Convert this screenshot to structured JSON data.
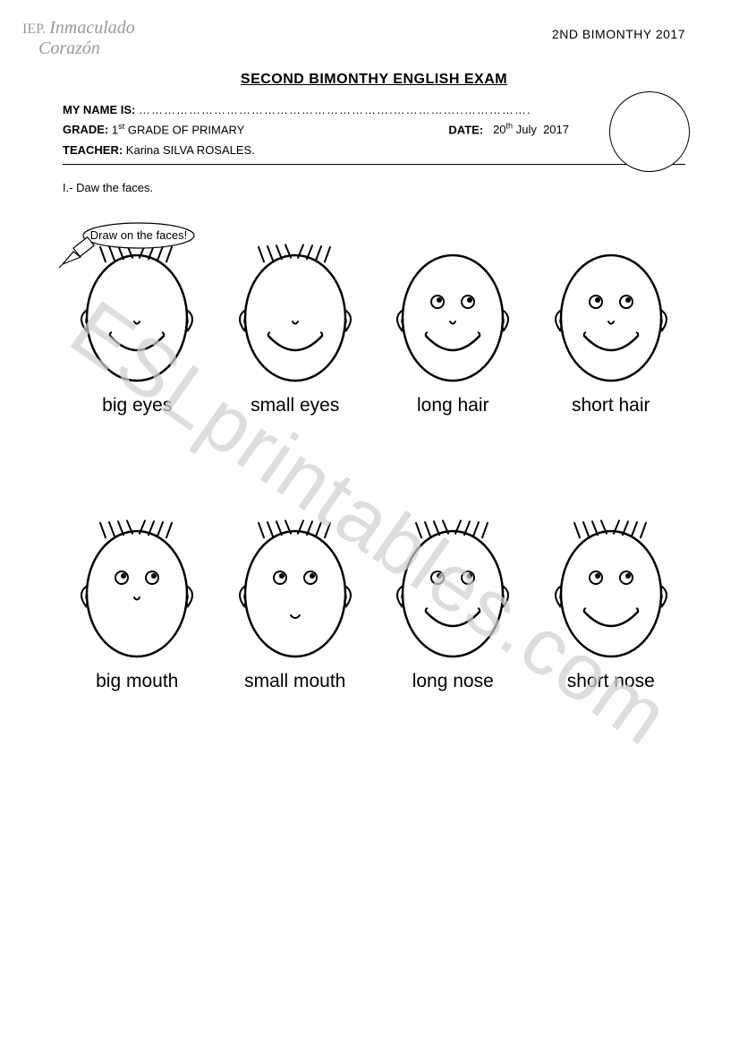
{
  "header": {
    "logo_line1": "IEP.",
    "logo_line2": "Inmaculado",
    "logo_line3": "Corazón",
    "top_right": "2ND  BIMONTHY 2017",
    "title": "SECOND BIMONTHY ENGLISH EXAM",
    "name_label": "MY NAME IS:",
    "name_dots": "…………………………………………………….……………..…………….",
    "grade_label": "GRADE:",
    "grade_value": "1st GRADE OF PRIMARY",
    "date_label": "DATE:",
    "date_value": "20th July  2017",
    "teacher_label": "TEACHER:",
    "teacher_value": "Karina SILVA ROSALES."
  },
  "instruction": "I.- Daw the faces.",
  "callout_text": "Draw on the faces!",
  "watermark": "ESLprintables.com",
  "faces": [
    {
      "label": "big eyes",
      "hair": true,
      "eyes": false,
      "mouth": "smile",
      "nose": "dot"
    },
    {
      "label": "small eyes",
      "hair": true,
      "eyes": false,
      "mouth": "smile",
      "nose": "dot"
    },
    {
      "label": "long hair",
      "hair": false,
      "eyes": true,
      "mouth": "smile",
      "nose": "dot"
    },
    {
      "label": "short hair",
      "hair": false,
      "eyes": true,
      "mouth": "smile",
      "nose": "dot"
    },
    {
      "label": "big mouth",
      "hair": true,
      "eyes": true,
      "mouth": "none",
      "nose": "dot"
    },
    {
      "label": "small mouth",
      "hair": true,
      "eyes": true,
      "mouth": "tiny",
      "nose": "none"
    },
    {
      "label": "long nose",
      "hair": true,
      "eyes": true,
      "mouth": "smile",
      "nose": "none"
    },
    {
      "label": "short nose",
      "hair": true,
      "eyes": true,
      "mouth": "smile",
      "nose": "none"
    }
  ],
  "style": {
    "stroke": "#000000",
    "stroke_width": 2,
    "face_fill": "#ffffff"
  }
}
